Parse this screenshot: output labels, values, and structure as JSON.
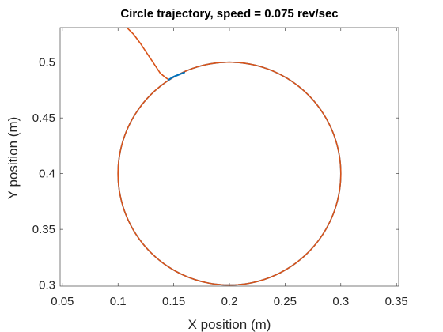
{
  "chart_data": {
    "type": "line",
    "title": "Circle trajectory, speed = 0.075 rev/sec",
    "xlabel": "X position (m)",
    "ylabel": "Y position (m)",
    "xlim": [
      0.048,
      0.352
    ],
    "ylim": [
      0.299,
      0.531
    ],
    "xticks": [
      0.05,
      0.1,
      0.15,
      0.2,
      0.25,
      0.3,
      0.35
    ],
    "xtick_labels": [
      "0.05",
      "0.1",
      "0.15",
      "0.2",
      "0.25",
      "0.3",
      "0.35"
    ],
    "yticks": [
      0.3,
      0.35,
      0.4,
      0.45,
      0.5
    ],
    "ytick_labels": [
      "0.3",
      "0.35",
      "0.4",
      "0.45",
      "0.5"
    ],
    "grid": false,
    "legend": "none",
    "series": [
      {
        "color": "#0072BD",
        "shape": "circle",
        "center": [
          0.2,
          0.4
        ],
        "radius": 0.1,
        "points": [
          [
            0.145,
            0.484
          ],
          [
            0.15,
            0.487
          ],
          [
            0.155,
            0.489
          ],
          [
            0.16,
            0.491
          ]
        ]
      },
      {
        "color": "#D95319",
        "shape": "circle",
        "center": [
          0.2,
          0.4
        ],
        "radius": 0.1,
        "approach_path": [
          [
            0.108,
            0.531
          ],
          [
            0.114,
            0.525
          ],
          [
            0.12,
            0.517
          ],
          [
            0.126,
            0.508
          ],
          [
            0.132,
            0.499
          ],
          [
            0.138,
            0.49
          ],
          [
            0.143,
            0.486
          ],
          [
            0.146,
            0.484
          ]
        ]
      }
    ]
  }
}
